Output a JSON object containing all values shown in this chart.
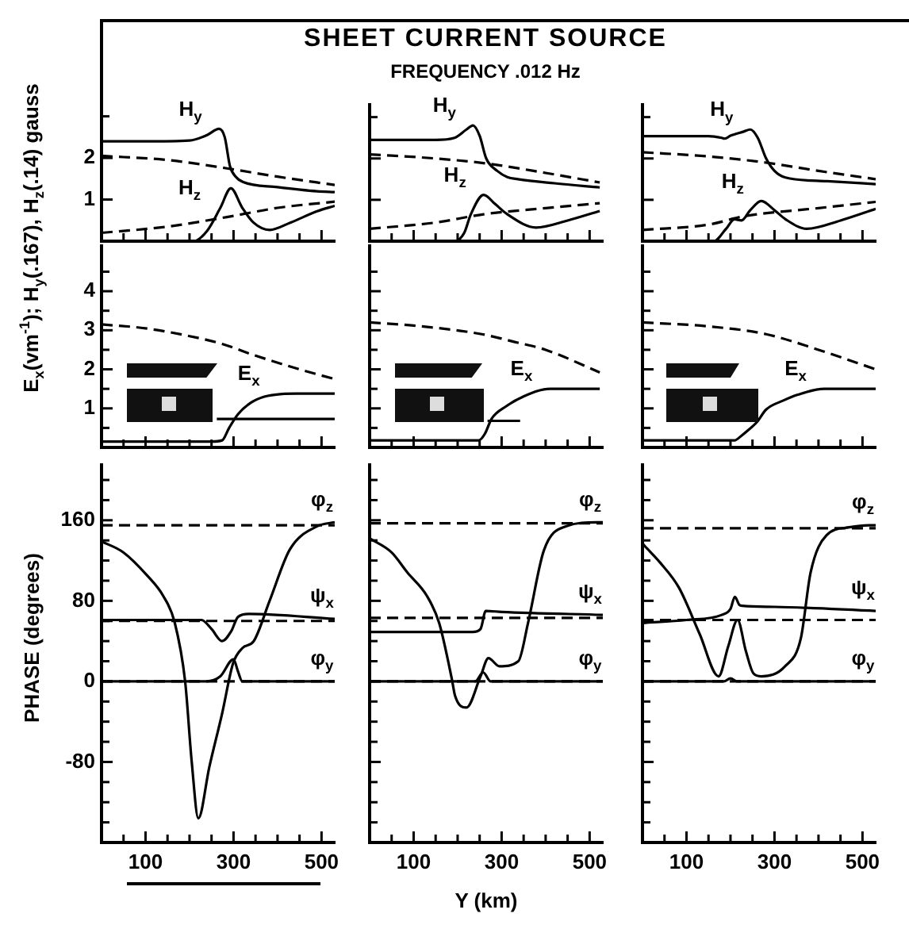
{
  "chart_data": [
    {
      "type": "line",
      "xlim": [
        0,
        530
      ],
      "ylim": [
        0,
        5.3
      ],
      "tick_labels": "y",
      "xticks": [
        {
          "value": 50,
          "label": null
        },
        100,
        {
          "value": 150,
          "label": null
        },
        {
          "value": 200,
          "label": null
        },
        {
          "value": 250,
          "label": null
        },
        300,
        {
          "value": 350,
          "label": null
        },
        {
          "value": 400,
          "label": null
        },
        {
          "value": 450,
          "label": null
        },
        500
      ],
      "yticks": [
        1,
        2,
        {
          "value": 3,
          "label": null
        }
      ],
      "ylabel": "E$_{x}$(vm$^{-1}$); H$_{y}$(.167), H$_{z}$(.14) gauss",
      "series": [
        {
          "name": "H$_{y}$",
          "color": "#000000",
          "line_style": "solid",
          "x": [
            0,
            100,
            200,
            240,
            267,
            280,
            292,
            305,
            322,
            400,
            490,
            530
          ],
          "values": [
            2.4,
            2.4,
            2.42,
            2.55,
            2.7,
            2.5,
            1.8,
            1.55,
            1.42,
            1.3,
            1.2,
            1.18
          ]
        },
        {
          "color": "#000000",
          "line_style": "dashed",
          "x": [
            0,
            150,
            285,
            400,
            530
          ],
          "values": [
            2.05,
            1.95,
            1.75,
            1.55,
            1.35
          ]
        },
        {
          "name": "H$_{z}$",
          "color": "#000000",
          "line_style": "solid",
          "x": [
            0,
            210,
            240,
            270,
            294,
            320,
            345,
            382,
            430,
            490,
            530
          ],
          "values": [
            0,
            0,
            0.25,
            0.8,
            1.27,
            0.8,
            0.45,
            0.27,
            0.45,
            0.72,
            0.85
          ]
        },
        {
          "color": "#000000",
          "line_style": "dashed",
          "x": [
            0,
            150,
            285,
            400,
            530
          ],
          "values": [
            0.2,
            0.35,
            0.58,
            0.8,
            0.95
          ]
        }
      ]
    },
    {
      "type": "line",
      "xlim": [
        0,
        530
      ],
      "ylim": [
        0,
        3.3
      ],
      "tick_labels": false,
      "title": "SHEET   CURRENT   SOURCE",
      "subtitle": "FREQUENCY   .012 Hz",
      "xticks": [
        {
          "value": 50,
          "label": null
        },
        100,
        {
          "value": 150,
          "label": null
        },
        {
          "value": 200,
          "label": null
        },
        {
          "value": 250,
          "label": null
        },
        300,
        {
          "value": 350,
          "label": null
        },
        {
          "value": 400,
          "label": null
        },
        {
          "value": 450,
          "label": null
        },
        500
      ],
      "yticks": [
        1,
        2,
        {
          "value": 3,
          "label": null
        }
      ],
      "series": [
        {
          "name": "H$_{y}$",
          "color": "#000000",
          "line_style": "solid",
          "x": [
            0,
            150,
            193,
            220,
            235,
            250,
            265,
            290,
            313,
            337,
            420,
            523
          ],
          "values": [
            2.45,
            2.45,
            2.5,
            2.7,
            2.8,
            2.55,
            2.0,
            1.7,
            1.55,
            1.5,
            1.4,
            1.3
          ]
        },
        {
          "color": "#000000",
          "line_style": "dashed",
          "x": [
            0,
            150,
            265,
            400,
            523
          ],
          "values": [
            2.1,
            2.0,
            1.88,
            1.65,
            1.42
          ]
        },
        {
          "name": "H$_{z}$",
          "color": "#000000",
          "line_style": "solid",
          "x": [
            0,
            193,
            215,
            230,
            259,
            285,
            313,
            378,
            450,
            523
          ],
          "values": [
            0,
            0,
            0.2,
            0.65,
            1.12,
            0.9,
            0.65,
            0.33,
            0.5,
            0.73
          ]
        },
        {
          "color": "#000000",
          "line_style": "dashed",
          "x": [
            0,
            150,
            259,
            400,
            523
          ],
          "values": [
            0.3,
            0.45,
            0.65,
            0.8,
            0.92
          ]
        }
      ]
    },
    {
      "type": "line",
      "xlim": [
        0,
        530
      ],
      "ylim": [
        0,
        3.3
      ],
      "tick_labels": false,
      "xticks": [
        {
          "value": 50,
          "label": null
        },
        100,
        {
          "value": 150,
          "label": null
        },
        {
          "value": 200,
          "label": null
        },
        {
          "value": 250,
          "label": null
        },
        300,
        {
          "value": 350,
          "label": null
        },
        {
          "value": 400,
          "label": null
        },
        {
          "value": 450,
          "label": null
        },
        500
      ],
      "yticks": [
        1,
        2,
        {
          "value": 3,
          "label": null
        }
      ],
      "series": [
        {
          "name": "H$_{y}$",
          "color": "#000000",
          "line_style": "solid",
          "x": [
            0,
            150,
            180,
            187,
            200,
            230,
            245,
            262,
            281,
            300,
            325,
            420,
            530
          ],
          "values": [
            2.54,
            2.54,
            2.5,
            2.48,
            2.55,
            2.65,
            2.7,
            2.5,
            2.0,
            1.7,
            1.54,
            1.45,
            1.38
          ]
        },
        {
          "color": "#000000",
          "line_style": "dashed",
          "x": [
            0,
            150,
            281,
            400,
            530
          ],
          "values": [
            2.15,
            2.05,
            1.9,
            1.7,
            1.5
          ]
        },
        {
          "name": "H$_{z}$",
          "color": "#000000",
          "line_style": "solid",
          "x": [
            0,
            162,
            190,
            209,
            225,
            245,
            270,
            300,
            325,
            373,
            450,
            530
          ],
          "values": [
            0,
            0,
            0.3,
            0.53,
            0.5,
            0.75,
            0.97,
            0.75,
            0.53,
            0.3,
            0.5,
            0.78
          ]
        },
        {
          "color": "#000000",
          "line_style": "dashed",
          "x": [
            0,
            150,
            230,
            400,
            530
          ],
          "values": [
            0.27,
            0.4,
            0.6,
            0.8,
            0.95
          ]
        }
      ]
    },
    {
      "type": "line",
      "xlim": [
        0,
        530
      ],
      "ylim": [
        0,
        5.2
      ],
      "tick_labels": "y",
      "xticks": [
        {
          "value": 50,
          "label": null
        },
        100,
        {
          "value": 150,
          "label": null
        },
        {
          "value": 200,
          "label": null
        },
        {
          "value": 250,
          "label": null
        },
        300,
        {
          "value": 350,
          "label": null
        },
        {
          "value": 400,
          "label": null
        },
        {
          "value": 450,
          "label": null
        },
        500
      ],
      "yticks": [
        {
          "value": 0.5,
          "label": null
        },
        1,
        {
          "value": 1.5,
          "label": null
        },
        2,
        {
          "value": 2.5,
          "label": null
        },
        3,
        {
          "value": 3.5,
          "label": null
        },
        4,
        {
          "value": 4.5,
          "label": null
        }
      ],
      "series": [
        {
          "color": "#000000",
          "line_style": "dashed",
          "x": [
            0,
            100,
            200,
            274,
            350,
            450,
            530
          ],
          "values": [
            3.15,
            3.05,
            2.85,
            2.65,
            2.35,
            2.0,
            1.75
          ]
        },
        {
          "name": "E$_{x}$",
          "color": "#000000",
          "line_style": "solid",
          "x": [
            0,
            250,
            274,
            290,
            310,
            340,
            370,
            410,
            443,
            530
          ],
          "values": [
            0.15,
            0.15,
            0.18,
            0.5,
            0.85,
            1.15,
            1.3,
            1.37,
            1.38,
            1.38
          ]
        },
        {
          "color": "#000000",
          "line_style": "solid",
          "x": [
            262,
            530
          ],
          "values": [
            0.73,
            0.73
          ]
        }
      ]
    },
    {
      "type": "line",
      "xlim": [
        0,
        530
      ],
      "ylim": [
        0,
        5.2
      ],
      "tick_labels": false,
      "xticks": [
        {
          "value": 50,
          "label": null
        },
        100,
        {
          "value": 150,
          "label": null
        },
        {
          "value": 200,
          "label": null
        },
        {
          "value": 250,
          "label": null
        },
        300,
        {
          "value": 350,
          "label": null
        },
        {
          "value": 400,
          "label": null
        },
        {
          "value": 450,
          "label": null
        },
        500
      ],
      "yticks": [
        {
          "value": 0.5,
          "label": null
        },
        1,
        {
          "value": 1.5,
          "label": null
        },
        2,
        {
          "value": 2.5,
          "label": null
        },
        3,
        {
          "value": 3.5,
          "label": null
        },
        4,
        {
          "value": 4.5,
          "label": null
        }
      ],
      "series": [
        {
          "color": "#000000",
          "line_style": "dashed",
          "x": [
            0,
            100,
            255,
            330,
            400,
            523
          ],
          "values": [
            3.2,
            3.12,
            2.9,
            2.7,
            2.5,
            1.92
          ]
        },
        {
          "name": "E$_{x}$",
          "color": "#000000",
          "line_style": "solid",
          "x": [
            0,
            248,
            262,
            277,
            310,
            349,
            410,
            523
          ],
          "values": [
            0.18,
            0.18,
            0.35,
            0.73,
            1.05,
            1.3,
            1.5,
            1.5
          ]
        },
        {
          "color": "#000000",
          "line_style": "solid",
          "x": [
            268,
            342
          ],
          "values": [
            0.68,
            0.68
          ]
        }
      ]
    },
    {
      "type": "line",
      "xlim": [
        0,
        530
      ],
      "ylim": [
        0,
        5.2
      ],
      "tick_labels": false,
      "xticks": [
        {
          "value": 50,
          "label": null
        },
        100,
        {
          "value": 150,
          "label": null
        },
        {
          "value": 200,
          "label": null
        },
        {
          "value": 250,
          "label": null
        },
        300,
        {
          "value": 350,
          "label": null
        },
        {
          "value": 400,
          "label": null
        },
        {
          "value": 450,
          "label": null
        },
        500
      ],
      "yticks": [
        {
          "value": 0.5,
          "label": null
        },
        1,
        {
          "value": 1.5,
          "label": null
        },
        2,
        {
          "value": 2.5,
          "label": null
        },
        3,
        {
          "value": 3.5,
          "label": null
        },
        4,
        {
          "value": 4.5,
          "label": null
        }
      ],
      "series": [
        {
          "color": "#000000",
          "line_style": "dashed",
          "x": [
            0,
            150,
            281,
            400,
            530
          ],
          "values": [
            3.2,
            3.1,
            2.9,
            2.5,
            2.0
          ]
        },
        {
          "name": "E$_{x}$",
          "color": "#000000",
          "line_style": "solid",
          "x": [
            0,
            209,
            225,
            238,
            260,
            281,
            320,
            353,
            413,
            530
          ],
          "values": [
            0.18,
            0.18,
            0.3,
            0.42,
            0.65,
            0.97,
            1.2,
            1.35,
            1.5,
            1.5
          ]
        }
      ]
    },
    {
      "type": "line",
      "xlim": [
        0,
        530
      ],
      "ylim": [
        -160,
        215
      ],
      "ylabel": "PHASE   (degrees)",
      "xticks": [
        {
          "value": 50,
          "label": null
        },
        100,
        {
          "value": 150,
          "label": null
        },
        {
          "value": 200,
          "label": null
        },
        {
          "value": 250,
          "label": null
        },
        300,
        {
          "value": 350,
          "label": null
        },
        {
          "value": 400,
          "label": null
        },
        {
          "value": 450,
          "label": null
        },
        500
      ],
      "yticks": [
        {
          "value": -140,
          "label": null
        },
        {
          "value": -120,
          "label": null
        },
        {
          "value": -100,
          "label": null
        },
        -80,
        {
          "value": -60,
          "label": null
        },
        {
          "value": -40,
          "label": null
        },
        {
          "value": -20,
          "label": null
        },
        0,
        {
          "value": 20,
          "label": null
        },
        {
          "value": 40,
          "label": null
        },
        {
          "value": 60,
          "label": null
        },
        80,
        {
          "value": 100,
          "label": null
        },
        {
          "value": 120,
          "label": null
        },
        {
          "value": 140,
          "label": null
        },
        160,
        {
          "value": 180,
          "label": null
        },
        {
          "value": 200,
          "label": null
        }
      ],
      "series": [
        {
          "name": "φ$_{z}$",
          "color": "#000000",
          "line_style": "solid",
          "x": [
            0,
            50,
            104,
            140,
            166,
            190,
            205,
            220,
            245,
            274,
            299,
            320,
            346,
            382,
            428,
            490,
            530
          ],
          "values": [
            139,
            128,
            105,
            85,
            59,
            0,
            -80,
            -136,
            -85,
            -32,
            18,
            33,
            40,
            80,
            131,
            154,
            158
          ]
        },
        {
          "color": "#000000",
          "line_style": "dashed",
          "x": [
            0,
            530
          ],
          "values": [
            155,
            155
          ]
        },
        {
          "name": "ψ$_{x}$",
          "color": "#000000",
          "line_style": "solid",
          "x": [
            0,
            227,
            250,
            274,
            295,
            310,
            335,
            530
          ],
          "values": [
            61,
            61,
            52,
            40,
            50,
            64,
            67,
            62
          ]
        },
        {
          "color": "#000000",
          "line_style": "dashed",
          "x": [
            0,
            530
          ],
          "values": [
            60,
            60
          ]
        },
        {
          "name": "φ$_{y}$",
          "color": "#000000",
          "line_style": "solid",
          "x": [
            0,
            238,
            270,
            300,
            310,
            320,
            530
          ],
          "values": [
            0,
            0,
            5,
            22,
            10,
            0,
            0
          ]
        },
        {
          "color": "#000000",
          "line_style": "dashed",
          "x": [
            0,
            530
          ],
          "values": [
            0,
            0
          ]
        }
      ]
    },
    {
      "type": "line",
      "xlim": [
        0,
        530
      ],
      "ylim": [
        -160,
        215
      ],
      "tick_labels": "x",
      "xlabel": "Y  (km)",
      "xticks": [
        {
          "value": 50,
          "label": null
        },
        100,
        {
          "value": 150,
          "label": null
        },
        {
          "value": 200,
          "label": null
        },
        {
          "value": 250,
          "label": null
        },
        300,
        {
          "value": 350,
          "label": null
        },
        {
          "value": 400,
          "label": null
        },
        {
          "value": 450,
          "label": null
        },
        500
      ],
      "yticks": [
        {
          "value": -140,
          "label": null
        },
        {
          "value": -120,
          "label": null
        },
        {
          "value": -100,
          "label": null
        },
        -80,
        {
          "value": -60,
          "label": null
        },
        {
          "value": -40,
          "label": null
        },
        {
          "value": -20,
          "label": null
        },
        0,
        {
          "value": 20,
          "label": null
        },
        {
          "value": 40,
          "label": null
        },
        {
          "value": 60,
          "label": null
        },
        80,
        {
          "value": 100,
          "label": null
        },
        {
          "value": 120,
          "label": null
        },
        {
          "value": 140,
          "label": null
        },
        160,
        {
          "value": 180,
          "label": null
        },
        {
          "value": 200,
          "label": null
        }
      ],
      "series": [
        {
          "name": "φ$_{z}$",
          "color": "#000000",
          "line_style": "solid",
          "x": [
            0,
            50,
            86,
            130,
            158,
            187,
            194,
            220,
            252,
            270,
            295,
            338,
            360,
            396,
            446,
            518,
            530
          ],
          "values": [
            142,
            128,
            108,
            85,
            58,
            2,
            -14,
            -26,
            5,
            23,
            15,
            20,
            58,
            130,
            154,
            158,
            158
          ]
        },
        {
          "color": "#000000",
          "line_style": "dashed",
          "x": [
            0,
            530
          ],
          "values": [
            157,
            157
          ]
        },
        {
          "name": "ψ$_{x}$",
          "color": "#000000",
          "line_style": "solid",
          "x": [
            0,
            234,
            252,
            264,
            300,
            530
          ],
          "values": [
            49,
            49,
            52,
            70,
            69,
            66
          ]
        },
        {
          "color": "#000000",
          "line_style": "dashed",
          "x": [
            0,
            530
          ],
          "values": [
            63,
            63
          ]
        },
        {
          "name": "φ$_{y}$",
          "color": "#000000",
          "line_style": "solid",
          "x": [
            0,
            240,
            258,
            275,
            530
          ],
          "values": [
            0,
            0,
            9,
            0,
            0
          ]
        },
        {
          "color": "#000000",
          "line_style": "dashed",
          "x": [
            0,
            530
          ],
          "values": [
            0,
            0
          ]
        }
      ]
    },
    {
      "type": "line",
      "xlim": [
        0,
        530
      ],
      "ylim": [
        -160,
        215
      ],
      "tick_labels": "x",
      "xticks": [
        {
          "value": 50,
          "label": null
        },
        100,
        {
          "value": 150,
          "label": null
        },
        {
          "value": 200,
          "label": null
        },
        {
          "value": 250,
          "label": null
        },
        300,
        {
          "value": 350,
          "label": null
        },
        {
          "value": 400,
          "label": null
        },
        {
          "value": 450,
          "label": null
        },
        500
      ],
      "yticks": [
        {
          "value": -140,
          "label": null
        },
        {
          "value": -120,
          "label": null
        },
        {
          "value": -100,
          "label": null
        },
        -80,
        {
          "value": -60,
          "label": null
        },
        {
          "value": -40,
          "label": null
        },
        {
          "value": -20,
          "label": null
        },
        0,
        {
          "value": 20,
          "label": null
        },
        {
          "value": 40,
          "label": null
        },
        {
          "value": 60,
          "label": null
        },
        80,
        {
          "value": 100,
          "label": null
        },
        {
          "value": 120,
          "label": null
        },
        {
          "value": 140,
          "label": null
        },
        160,
        {
          "value": 180,
          "label": null
        },
        {
          "value": 200,
          "label": null
        }
      ],
      "series": [
        {
          "name": "φ$_{z}$",
          "color": "#000000",
          "line_style": "solid",
          "x": [
            0,
            4,
            40,
            83,
            130,
            173,
            195,
            216,
            235,
            252,
            270,
            324,
            360,
            382,
            418,
            470,
            515,
            530
          ],
          "values": [
            137,
            135,
            118,
            93,
            47,
            5,
            35,
            61,
            30,
            8,
            5,
            15,
            43,
            108,
            145,
            153,
            155,
            155
          ]
        },
        {
          "color": "#000000",
          "line_style": "dashed",
          "x": [
            0,
            530
          ],
          "values": [
            152,
            152
          ]
        },
        {
          "name": "ψ$_{x}$",
          "color": "#000000",
          "line_style": "solid",
          "x": [
            0,
            100,
            180,
            200,
            210,
            220,
            227,
            300,
            530
          ],
          "values": [
            58,
            61,
            66,
            72,
            84,
            76,
            75,
            74,
            70
          ]
        },
        {
          "color": "#000000",
          "line_style": "dashed",
          "x": [
            0,
            530
          ],
          "values": [
            61,
            61
          ]
        },
        {
          "name": "φ$_{y}$",
          "color": "#000000",
          "line_style": "solid",
          "x": [
            0,
            185,
            200,
            215,
            530
          ],
          "values": [
            0,
            0,
            3,
            0,
            0
          ]
        },
        {
          "color": "#000000",
          "line_style": "dashed",
          "x": [
            0,
            530
          ],
          "values": [
            0,
            0
          ]
        }
      ]
    }
  ]
}
